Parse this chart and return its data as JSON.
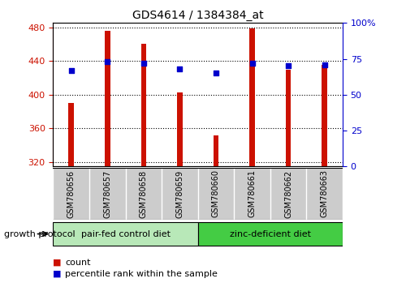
{
  "title": "GDS4614 / 1384384_at",
  "samples": [
    "GSM780656",
    "GSM780657",
    "GSM780658",
    "GSM780659",
    "GSM780660",
    "GSM780661",
    "GSM780662",
    "GSM780663"
  ],
  "counts": [
    390,
    476,
    460,
    403,
    352,
    479,
    430,
    435
  ],
  "percentiles": [
    67,
    73,
    72,
    68,
    65,
    72,
    70,
    71
  ],
  "ylim_left": [
    315,
    485
  ],
  "ylim_right": [
    0,
    100
  ],
  "yticks_left": [
    320,
    360,
    400,
    440,
    480
  ],
  "yticks_right": [
    0,
    25,
    50,
    75,
    100
  ],
  "groups": [
    {
      "label": "pair-fed control diet",
      "indices": [
        0,
        1,
        2,
        3
      ],
      "color": "#b8e8b8"
    },
    {
      "label": "zinc-deficient diet",
      "indices": [
        4,
        5,
        6,
        7
      ],
      "color": "#44cc44"
    }
  ],
  "bar_color": "#cc1100",
  "dot_color": "#0000cc",
  "bar_bottom": 315,
  "count_label": "count",
  "percentile_label": "percentile rank within the sample",
  "group_label": "growth protocol",
  "tick_label_color_left": "#cc1100",
  "tick_label_color_right": "#0000cc",
  "background_plot": "#ffffff",
  "background_xlabels": "#cccccc",
  "bar_width": 0.15
}
